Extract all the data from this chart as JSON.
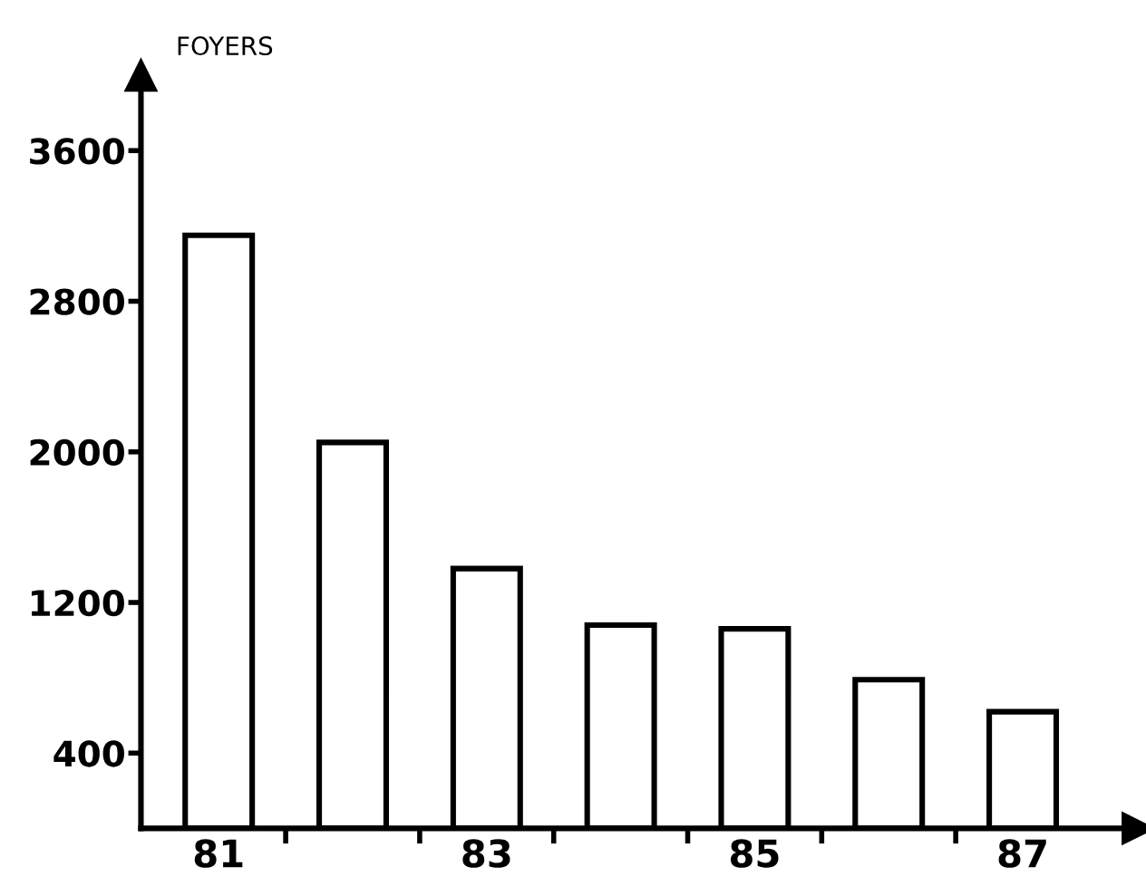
{
  "chart_data": {
    "type": "bar",
    "ylabel": "FOYERS",
    "categories": [
      "81",
      null,
      "83",
      null,
      "85",
      null,
      "87"
    ],
    "values": [
      3150,
      2050,
      1380,
      1080,
      1060,
      790,
      620
    ],
    "color": "#ffffff",
    "ylim": [
      0,
      4000
    ],
    "yticks": [
      400,
      1200,
      2000,
      2800,
      3600
    ],
    "grid": false,
    "legend": false
  }
}
